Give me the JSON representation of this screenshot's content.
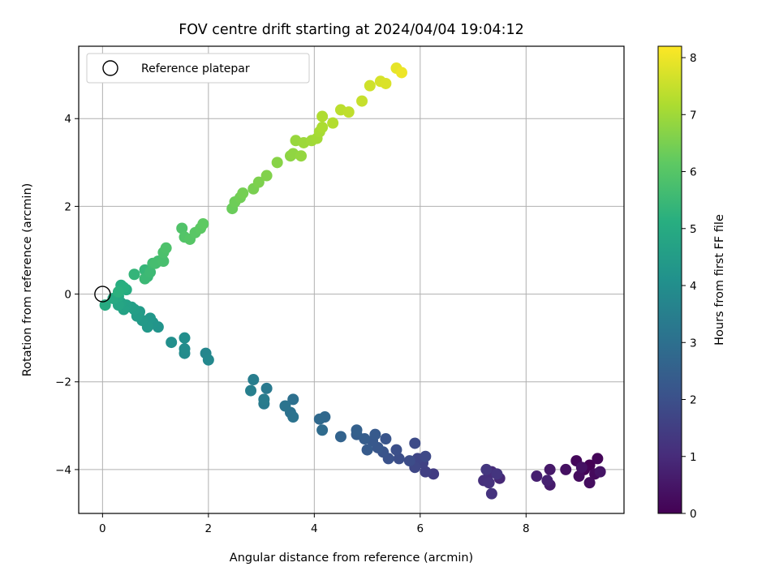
{
  "chart_data": {
    "type": "scatter",
    "title": "FOV centre drift starting at 2024/04/04 19:04:12",
    "xlabel": "Angular distance from reference (arcmin)",
    "ylabel": "Rotation from reference (arcmin)",
    "xlim": [
      -0.45,
      9.85
    ],
    "ylim": [
      -5.0,
      5.65
    ],
    "xticks": [
      0,
      2,
      4,
      6,
      8
    ],
    "yticks": [
      -4,
      -2,
      0,
      2,
      4
    ],
    "xtick_labels": [
      "0",
      "2",
      "4",
      "6",
      "8"
    ],
    "ytick_labels": [
      "−4",
      "−2",
      "0",
      "2",
      "4"
    ],
    "grid": true,
    "legend": {
      "placement": "top-left",
      "entries": [
        "Reference platepar"
      ]
    },
    "reference_point": {
      "x": 0,
      "y": 0,
      "label": "Reference platepar"
    },
    "colorbar": {
      "label": "Hours from first FF file",
      "colormap": "viridis",
      "range": [
        0,
        8.2
      ],
      "ticks": [
        0,
        1,
        2,
        3,
        4,
        5,
        6,
        7,
        8
      ],
      "tick_labels": [
        "0",
        "1",
        "2",
        "3",
        "4",
        "5",
        "6",
        "7",
        "8"
      ]
    },
    "series": [
      {
        "points": [
          [
            9.2,
            -3.9,
            0.0
          ],
          [
            9.1,
            -4.0,
            0.05
          ],
          [
            9.35,
            -3.75,
            0.1
          ],
          [
            8.95,
            -3.8,
            0.15
          ],
          [
            9.3,
            -4.1,
            0.2
          ],
          [
            9.0,
            -4.15,
            0.25
          ],
          [
            9.2,
            -4.3,
            0.3
          ],
          [
            8.75,
            -4.0,
            0.35
          ],
          [
            9.05,
            -3.95,
            0.4
          ],
          [
            9.4,
            -4.05,
            0.45
          ],
          [
            8.45,
            -4.0,
            0.55
          ],
          [
            8.45,
            -4.35,
            0.6
          ],
          [
            8.2,
            -4.15,
            0.7
          ],
          [
            8.4,
            -4.25,
            0.75
          ],
          [
            7.5,
            -4.2,
            0.9
          ],
          [
            7.35,
            -4.05,
            1.0
          ],
          [
            7.3,
            -4.1,
            1.05
          ],
          [
            7.2,
            -4.25,
            1.1
          ],
          [
            7.3,
            -4.3,
            1.15
          ],
          [
            7.35,
            -4.55,
            1.2
          ],
          [
            7.45,
            -4.1,
            1.25
          ],
          [
            7.25,
            -4.0,
            1.3
          ],
          [
            6.25,
            -4.1,
            1.45
          ],
          [
            6.1,
            -4.05,
            1.55
          ],
          [
            6.05,
            -3.85,
            1.6
          ],
          [
            5.95,
            -3.75,
            1.7
          ],
          [
            5.9,
            -3.95,
            1.75
          ],
          [
            6.1,
            -3.7,
            1.8
          ],
          [
            5.9,
            -3.4,
            1.85
          ],
          [
            5.8,
            -3.8,
            1.9
          ],
          [
            5.6,
            -3.75,
            1.95
          ],
          [
            5.55,
            -3.55,
            2.0
          ],
          [
            5.4,
            -3.75,
            2.05
          ],
          [
            5.3,
            -3.6,
            2.1
          ],
          [
            5.35,
            -3.3,
            2.15
          ],
          [
            5.2,
            -3.5,
            2.2
          ],
          [
            5.1,
            -3.35,
            2.25
          ],
          [
            5.15,
            -3.2,
            2.3
          ],
          [
            5.0,
            -3.55,
            2.35
          ],
          [
            4.95,
            -3.3,
            2.4
          ],
          [
            4.8,
            -3.2,
            2.45
          ],
          [
            4.8,
            -3.1,
            2.5
          ],
          [
            4.5,
            -3.25,
            2.6
          ],
          [
            4.2,
            -2.8,
            2.75
          ],
          [
            4.1,
            -2.85,
            2.8
          ],
          [
            4.15,
            -3.1,
            2.85
          ],
          [
            3.6,
            -2.4,
            3.0
          ],
          [
            3.55,
            -2.7,
            3.05
          ],
          [
            3.6,
            -2.8,
            3.1
          ],
          [
            3.45,
            -2.55,
            3.15
          ],
          [
            3.1,
            -2.15,
            3.3
          ],
          [
            3.05,
            -2.5,
            3.35
          ],
          [
            3.05,
            -2.4,
            3.4
          ],
          [
            2.85,
            -1.95,
            3.45
          ],
          [
            2.8,
            -2.2,
            3.5
          ],
          [
            1.95,
            -1.35,
            3.75
          ],
          [
            2.0,
            -1.5,
            3.8
          ],
          [
            1.55,
            -1.35,
            3.9
          ],
          [
            1.55,
            -1.25,
            3.95
          ],
          [
            1.55,
            -1.0,
            4.0
          ],
          [
            1.3,
            -1.1,
            4.05
          ],
          [
            1.05,
            -0.75,
            4.2
          ],
          [
            0.95,
            -0.65,
            4.25
          ],
          [
            0.9,
            -0.55,
            4.3
          ],
          [
            0.85,
            -0.75,
            4.35
          ],
          [
            0.75,
            -0.6,
            4.4
          ],
          [
            0.7,
            -0.4,
            4.45
          ],
          [
            0.65,
            -0.5,
            4.5
          ],
          [
            0.6,
            -0.35,
            4.55
          ],
          [
            0.55,
            -0.3,
            4.6
          ],
          [
            0.45,
            -0.25,
            4.65
          ],
          [
            0.4,
            -0.35,
            4.7
          ],
          [
            0.35,
            -0.2,
            4.75
          ],
          [
            0.3,
            -0.25,
            4.8
          ],
          [
            0.25,
            -0.1,
            4.85
          ],
          [
            0.3,
            -0.05,
            4.9
          ],
          [
            0.2,
            -0.1,
            4.95
          ],
          [
            0.05,
            -0.25,
            5.0
          ],
          [
            0.45,
            0.1,
            5.05
          ],
          [
            0.35,
            0.2,
            5.1
          ],
          [
            0.4,
            0.15,
            5.15
          ],
          [
            0.3,
            0.05,
            5.2
          ],
          [
            0.6,
            0.45,
            5.35
          ],
          [
            0.8,
            0.55,
            5.4
          ],
          [
            0.85,
            0.4,
            5.45
          ],
          [
            0.8,
            0.35,
            5.5
          ],
          [
            0.9,
            0.5,
            5.55
          ],
          [
            0.95,
            0.7,
            5.6
          ],
          [
            1.05,
            0.75,
            5.65
          ],
          [
            1.0,
            0.7,
            5.7
          ],
          [
            1.15,
            0.75,
            5.75
          ],
          [
            1.15,
            0.95,
            5.8
          ],
          [
            1.2,
            1.05,
            5.85
          ],
          [
            1.5,
            1.5,
            5.9
          ],
          [
            1.55,
            1.3,
            5.95
          ],
          [
            1.65,
            1.25,
            6.0
          ],
          [
            1.75,
            1.4,
            6.05
          ],
          [
            1.85,
            1.5,
            6.1
          ],
          [
            1.9,
            1.6,
            6.15
          ],
          [
            2.45,
            1.95,
            6.3
          ],
          [
            2.5,
            2.1,
            6.35
          ],
          [
            2.6,
            2.2,
            6.4
          ],
          [
            2.65,
            2.3,
            6.45
          ],
          [
            2.85,
            2.4,
            6.5
          ],
          [
            2.95,
            2.55,
            6.55
          ],
          [
            3.1,
            2.7,
            6.6
          ],
          [
            3.3,
            3.0,
            6.7
          ],
          [
            3.55,
            3.15,
            6.75
          ],
          [
            3.6,
            3.2,
            6.8
          ],
          [
            3.75,
            3.15,
            6.85
          ],
          [
            3.65,
            3.5,
            6.9
          ],
          [
            3.8,
            3.45,
            6.95
          ],
          [
            3.95,
            3.5,
            7.0
          ],
          [
            4.05,
            3.55,
            7.05
          ],
          [
            4.1,
            3.7,
            7.1
          ],
          [
            4.15,
            3.8,
            7.15
          ],
          [
            4.15,
            4.05,
            7.2
          ],
          [
            4.35,
            3.9,
            7.25
          ],
          [
            4.5,
            4.2,
            7.35
          ],
          [
            4.65,
            4.15,
            7.4
          ],
          [
            4.9,
            4.4,
            7.5
          ],
          [
            5.05,
            4.75,
            7.6
          ],
          [
            5.25,
            4.85,
            7.7
          ],
          [
            5.35,
            4.8,
            7.75
          ],
          [
            5.55,
            5.15,
            7.9
          ],
          [
            5.65,
            5.05,
            8.0
          ]
        ]
      }
    ]
  }
}
